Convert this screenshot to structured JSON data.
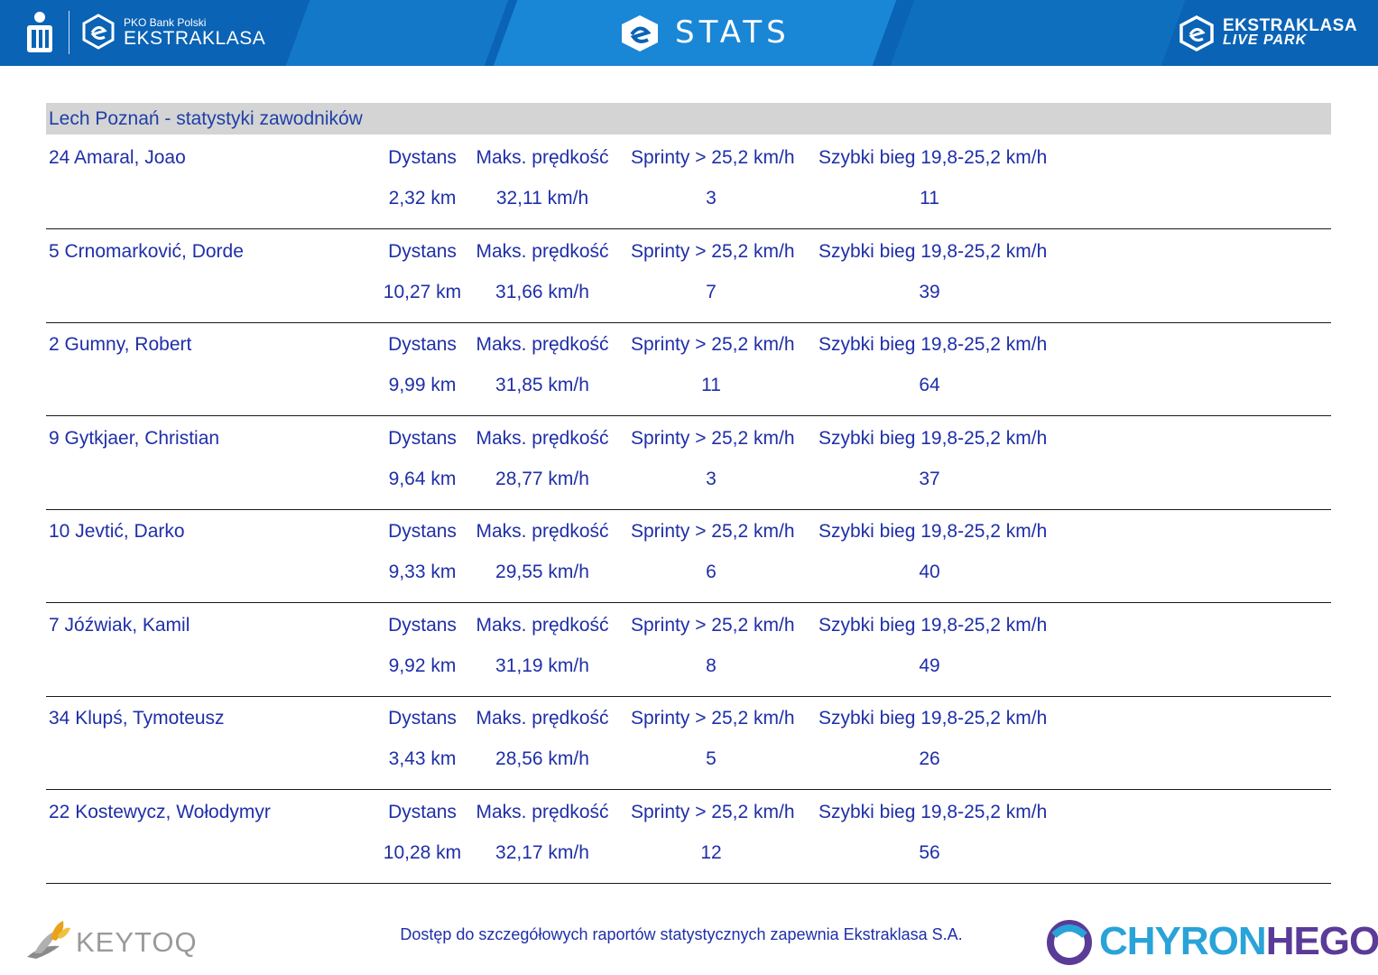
{
  "header": {
    "brand_small": "PKO Bank Polski",
    "brand_big": "EKSTRAKLASA",
    "stats_title": "STATS",
    "livepark_line1": "EKSTRAKLASA",
    "livepark_line2": "LIVE PARK",
    "colors": {
      "bar": "#0a63b5",
      "accent": "#1a86d6"
    }
  },
  "table": {
    "team_title": "Lech Poznań - statystyki zawodników",
    "labels": {
      "distance": "Dystans",
      "max_speed": "Maks. prędkość",
      "sprints": "Sprinty > 25,2 km/h",
      "fast_runs": "Szybki bieg 19,8-25,2 km/h"
    },
    "players": [
      {
        "name": "24  Amaral, Joao",
        "distance": "2,32 km",
        "max_speed": "32,11 km/h",
        "sprints": "3",
        "fast_runs": "11"
      },
      {
        "name": "5  Crnomarković, Dorde",
        "distance": "10,27 km",
        "max_speed": "31,66 km/h",
        "sprints": "7",
        "fast_runs": "39"
      },
      {
        "name": "2  Gumny, Robert",
        "distance": "9,99 km",
        "max_speed": "31,85 km/h",
        "sprints": "11",
        "fast_runs": "64"
      },
      {
        "name": "9  Gytkjaer, Christian",
        "distance": "9,64 km",
        "max_speed": "28,77 km/h",
        "sprints": "3",
        "fast_runs": "37"
      },
      {
        "name": "10  Jevtić, Darko",
        "distance": "9,33 km",
        "max_speed": "29,55 km/h",
        "sprints": "6",
        "fast_runs": "40"
      },
      {
        "name": "7  Jóźwiak, Kamil",
        "distance": "9,92 km",
        "max_speed": "31,19 km/h",
        "sprints": "8",
        "fast_runs": "49"
      },
      {
        "name": "34  Klupś, Tymoteusz",
        "distance": "3,43 km",
        "max_speed": "28,56 km/h",
        "sprints": "5",
        "fast_runs": "26"
      },
      {
        "name": "22  Kostewycz, Wołodymyr",
        "distance": "10,28 km",
        "max_speed": "32,17 km/h",
        "sprints": "12",
        "fast_runs": "56"
      }
    ]
  },
  "footer": {
    "keytoq": "KEYTOQ",
    "note": "Dostęp do szczegółowych raportów statystycznych zapewnia Ekstraklasa S.A.",
    "chyron_part1": "CHYRON",
    "chyron_part2": "HEGO"
  },
  "icons": [
    "pko-logo-icon",
    "ekstraklasa-badge-icon",
    "stats-logo-icon",
    "livepark-logo-icon",
    "keytoq-logo-icon",
    "chyronhego-logo-icon"
  ]
}
